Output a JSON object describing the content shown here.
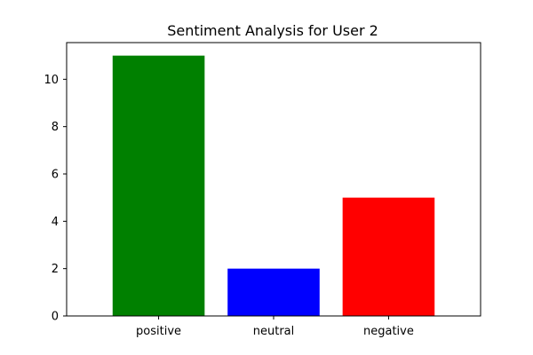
{
  "chart_data": {
    "type": "bar",
    "title": "Sentiment Analysis for User 2",
    "xlabel": "",
    "ylabel": "",
    "categories": [
      "positive",
      "neutral",
      "negative"
    ],
    "values": [
      11,
      2,
      5
    ],
    "colors": [
      "#008000",
      "#0000ff",
      "#ff0000"
    ],
    "ylim": [
      0,
      11.55
    ],
    "yticks": [
      0,
      2,
      4,
      6,
      8,
      10
    ],
    "grid": false,
    "legend": "none"
  }
}
